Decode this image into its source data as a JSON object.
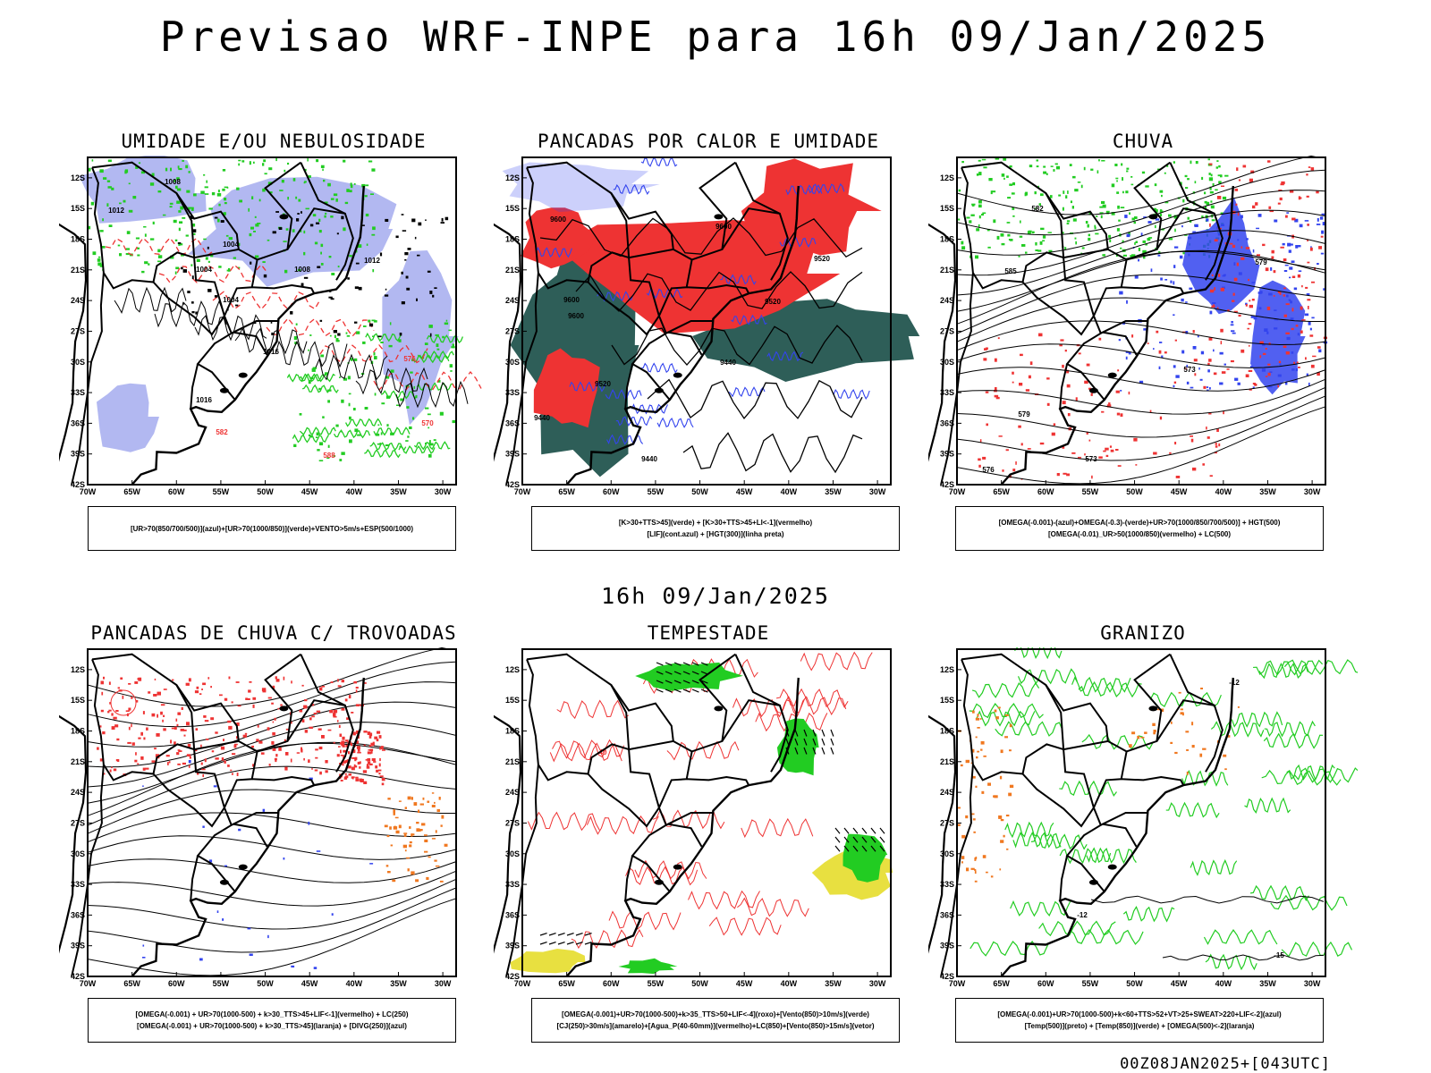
{
  "title": "Previsao WRF-INPE  para 16h 09/Jan/2025",
  "mid_title": "16h 09/Jan/2025",
  "footer": "00Z08JAN2025+[043UTC]",
  "axes": {
    "lat_labels": [
      "12S",
      "15S",
      "18S",
      "21S",
      "24S",
      "27S",
      "30S",
      "33S",
      "36S",
      "39S",
      "42S"
    ],
    "lon_labels": [
      "70W",
      "65W",
      "60W",
      "55W",
      "50W",
      "45W",
      "40W",
      "35W",
      "30W"
    ]
  },
  "panels": [
    {
      "id": "umidade",
      "title": "UMIDADE E/OU NEBULOSIDADE",
      "legend": [
        "[UR>70(850/700/500)](azul)+[UR>70(1000/850)](verde)+VENTO>5m/s+ESP(500/1000)"
      ],
      "contour_labels": [
        "1008",
        "1012",
        "1004",
        "1004",
        "1004",
        "1008",
        "1012",
        "1016",
        "1016",
        "576",
        "570",
        "582",
        "588"
      ]
    },
    {
      "id": "pancadas-calor",
      "title": "PANCADAS POR CALOR E UMIDADE",
      "legend": [
        "[K>30+TTS>45](verde) + [K>30+TTS>45+LI<-1](vermelho)",
        "[LIF](cont.azul) + [HGT(300)](linha preta)"
      ],
      "contour_labels": [
        "9600",
        "9600",
        "9520",
        "9600",
        "9520",
        "9520",
        "9440",
        "9440",
        "9440",
        "9600"
      ]
    },
    {
      "id": "chuva",
      "title": "CHUVA",
      "legend": [
        "[OMEGA(-0.001)-(azul)+OMEGA(-0.3)-(verde)+UR>70(1000/850/700/500)] + HGT(500)",
        "[OMEGA(-0.01)_UR>50(1000/850)(vermelho) + LC(500)"
      ],
      "contour_labels": [
        "582",
        "585",
        "579",
        "573",
        "576",
        "573",
        "579"
      ]
    },
    {
      "id": "trovoadas",
      "title": "PANCADAS DE CHUVA C/ TROVOADAS",
      "legend": [
        "[OMEGA(-0.001) + UR>70(1000-500) + k>30_TTS>45+LIF<-1](vermelho) + LC(250)",
        "[OMEGA(-0.001) + UR>70(1000-500) + k>30_TTS>45](laranja) + [DIVG(250)](azul)"
      ],
      "contour_labels": []
    },
    {
      "id": "tempestade",
      "title": "TEMPESTADE",
      "legend": [
        "[OMEGA(-0.001)+UR>70(1000-500)+k>35_TTS>50+LIF<-4](roxo)+[Vento(850)>10m/s](verde)",
        "[CJ(250)>30m/s](amarelo)+[Agua_P(40-60mm)](vermelho)+LC(850)+[Vento(850)>15m/s](vetor)"
      ],
      "contour_labels": [
        "40"
      ]
    },
    {
      "id": "granizo",
      "title": "GRANIZO",
      "legend": [
        "[OMEGA(-0.001)+UR>70(1000-500)+k<60+TTS>52+VT>25+SWEAT>220+LIF<-2](azul)",
        "[Temp(500)](preto) + [Temp(850)](verde) + [OMEGA(500)<-2](laranja)"
      ],
      "contour_labels": [
        "-12",
        "-15",
        "-12"
      ]
    }
  ],
  "colors": {
    "blue": "#3344ee",
    "lavender": "#aab0f0",
    "green": "#22cc22",
    "red": "#ee3333",
    "salmon": "#f08080",
    "orange": "#f07820",
    "teal": "#2e5e58",
    "yellow": "#e8e040",
    "black": "#000000"
  }
}
